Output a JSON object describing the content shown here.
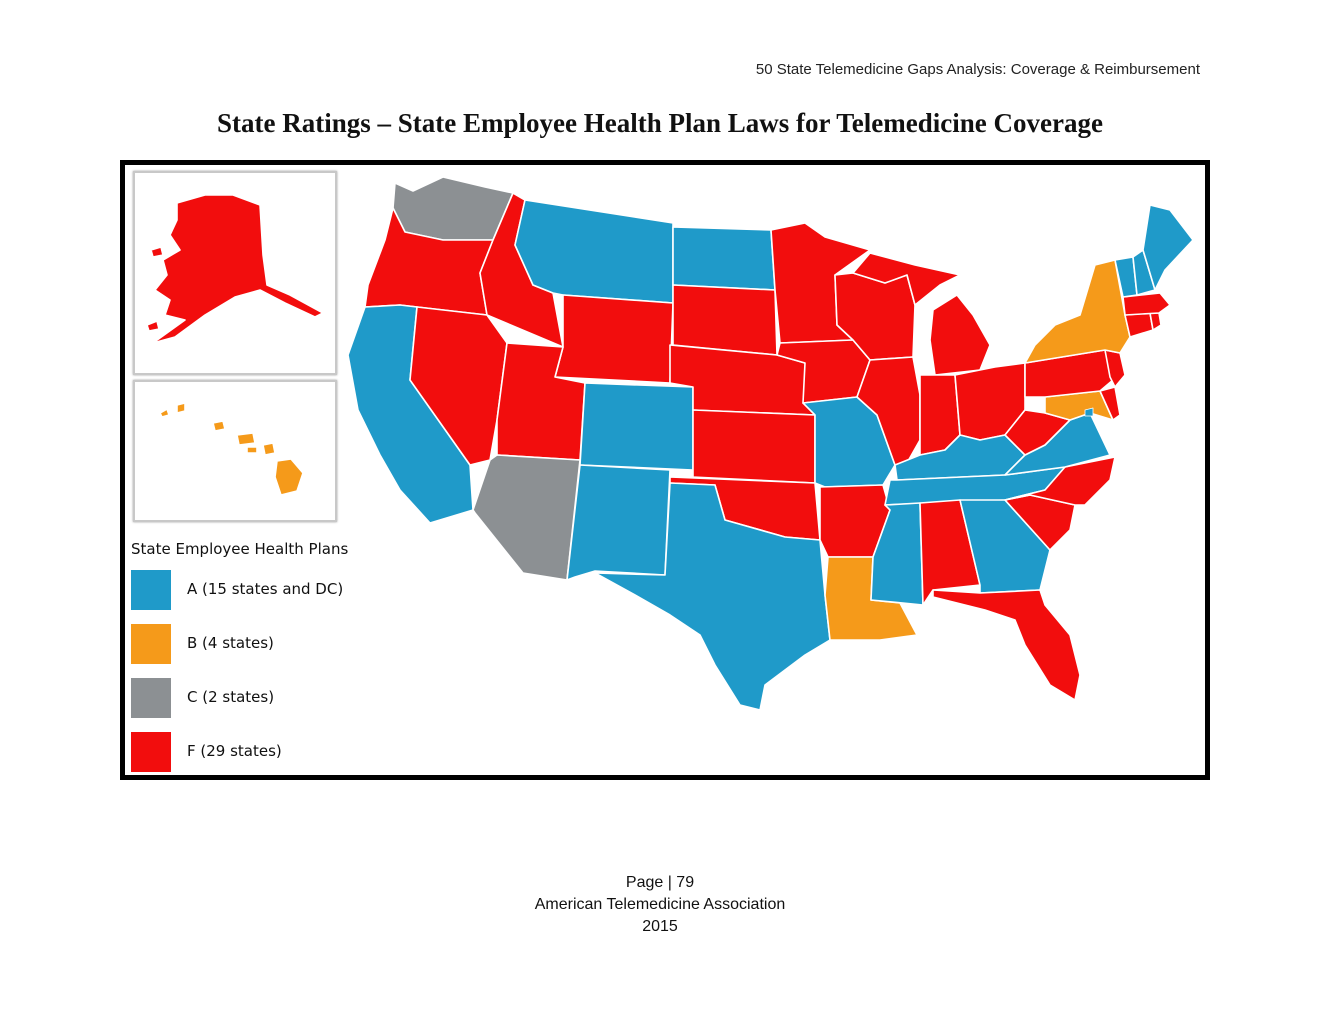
{
  "header": {
    "running_title": "50 State Telemedicine Gaps Analysis:  Coverage & Reimbursement"
  },
  "title": "State Ratings – State Employee Health Plan Laws for Telemedicine Coverage",
  "colors": {
    "A": "#1f9ac9",
    "B": "#f59a1a",
    "C": "#8c9093",
    "F": "#f20d0d",
    "border": "#ffffff",
    "frame": "#000000"
  },
  "legend": {
    "title": "State Employee Health Plans",
    "items": [
      {
        "grade": "A",
        "label": "A (15 states and DC)",
        "color": "#1f9ac9"
      },
      {
        "grade": "B",
        "label": "B (4 states)",
        "color": "#f59a1a"
      },
      {
        "grade": "C",
        "label": "C (2 states)",
        "color": "#8c9093"
      },
      {
        "grade": "F",
        "label": "F (29 states)",
        "color": "#f20d0d"
      }
    ]
  },
  "ratings": {
    "A": [
      "Montana",
      "North Dakota",
      "California",
      "Colorado",
      "New Mexico",
      "Texas",
      "Missouri",
      "Mississippi",
      "Georgia",
      "Kentucky",
      "Tennessee",
      "Virginia",
      "Maine",
      "New Hampshire",
      "Vermont",
      "District of Columbia"
    ],
    "B": [
      "New York",
      "Maryland",
      "Louisiana",
      "Hawaii"
    ],
    "C": [
      "Washington",
      "Arizona"
    ],
    "F": [
      "Oregon",
      "Idaho",
      "Nevada",
      "Utah",
      "Wyoming",
      "South Dakota",
      "Nebraska",
      "Kansas",
      "Oklahoma",
      "Minnesota",
      "Iowa",
      "Wisconsin",
      "Illinois",
      "Michigan",
      "Indiana",
      "Ohio",
      "Pennsylvania",
      "West Virginia",
      "North Carolina",
      "South Carolina",
      "Alabama",
      "Florida",
      "Arkansas",
      "New Jersey",
      "Delaware",
      "Connecticut",
      "Rhode Island",
      "Massachusetts",
      "Alaska"
    ]
  },
  "footer": {
    "page_label": "Page | 79",
    "organization": "American Telemedicine Association",
    "year": "2015"
  }
}
